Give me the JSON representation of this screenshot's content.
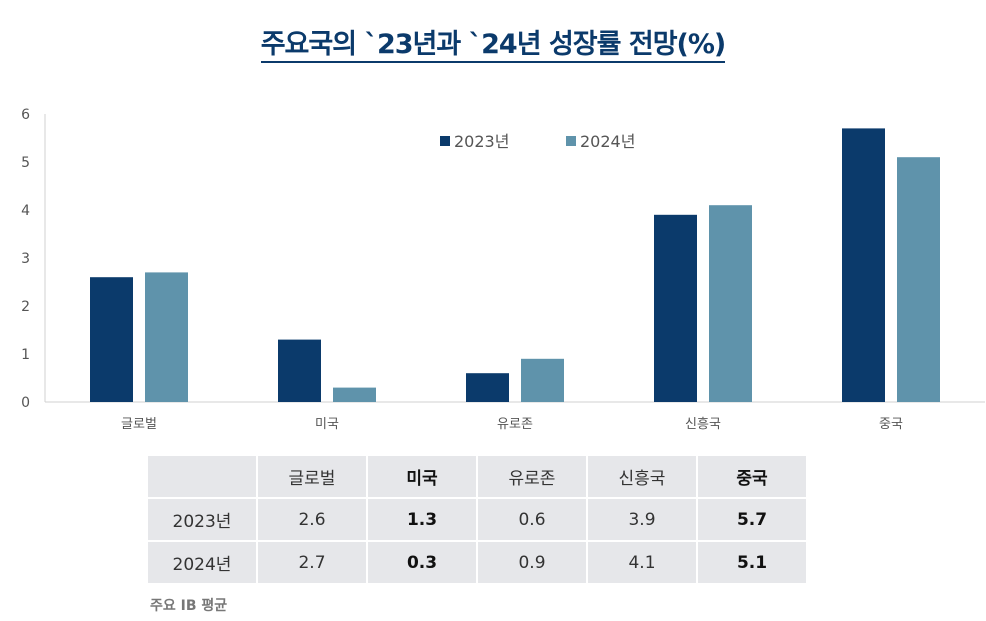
{
  "chart_data": {
    "type": "bar",
    "title": "주요국의 `23년과 `24년 성장률 전망(%)",
    "categories": [
      "글로벌",
      "미국",
      "유로존",
      "신흥국",
      "중국"
    ],
    "series": [
      {
        "name": "2023년",
        "values": [
          2.6,
          1.3,
          0.6,
          3.9,
          5.7
        ],
        "color": "#0b3a6b"
      },
      {
        "name": "2024년",
        "values": [
          2.7,
          0.3,
          0.9,
          4.1,
          5.1
        ],
        "color": "#5f93ab"
      }
    ],
    "ylim": [
      0,
      6
    ],
    "yticks": [
      "0",
      "1",
      "2",
      "3",
      "4",
      "5",
      "6"
    ],
    "grid": false,
    "legend": "top-center"
  },
  "table": {
    "header": [
      "",
      "글로벌",
      "미국",
      "유로존",
      "신흥국",
      "중국"
    ],
    "bold_columns": [
      2,
      5
    ],
    "rows": [
      [
        "2023년",
        "2.6",
        "1.3",
        "0.6",
        "3.9",
        "5.7"
      ],
      [
        "2024년",
        "2.7",
        "0.3",
        "0.9",
        "4.1",
        "5.1"
      ]
    ]
  },
  "note": "주요 IB 평균"
}
